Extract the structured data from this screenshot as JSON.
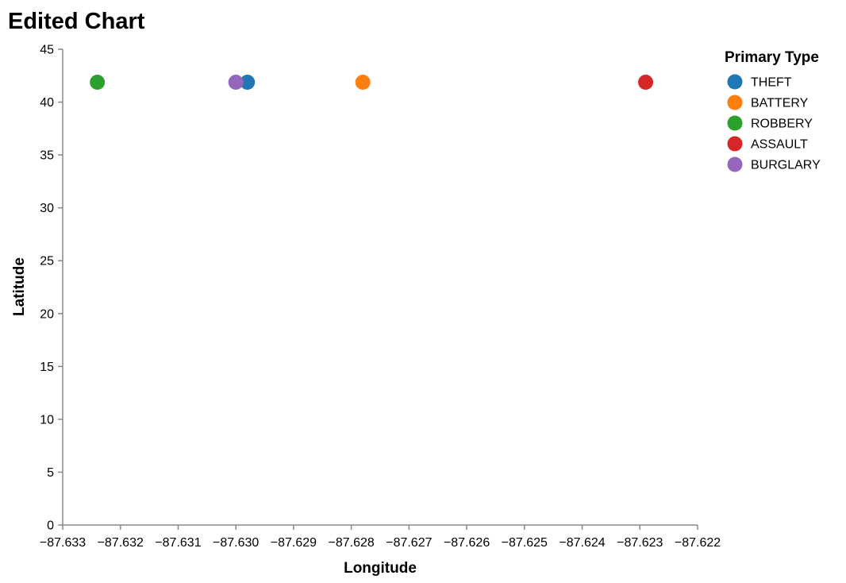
{
  "chart_data": {
    "type": "scatter",
    "title": "Edited Chart",
    "xlabel": "Longitude",
    "ylabel": "Latitude",
    "xlim": [
      -87.633,
      -87.622
    ],
    "ylim": [
      0,
      45
    ],
    "x_ticks": [
      "−87.633",
      "−87.632",
      "−87.631",
      "−87.630",
      "−87.629",
      "−87.628",
      "−87.627",
      "−87.626",
      "−87.625",
      "−87.624",
      "−87.623",
      "−87.622"
    ],
    "x_tick_values": [
      -87.633,
      -87.632,
      -87.631,
      -87.63,
      -87.629,
      -87.628,
      -87.627,
      -87.626,
      -87.625,
      -87.624,
      -87.623,
      -87.622
    ],
    "y_ticks": [
      "0",
      "5",
      "10",
      "15",
      "20",
      "25",
      "30",
      "35",
      "40",
      "45"
    ],
    "y_tick_values": [
      0,
      5,
      10,
      15,
      20,
      25,
      30,
      35,
      40,
      45
    ],
    "grid": false,
    "legend": {
      "title": "Primary Type",
      "position": "right",
      "entries": [
        {
          "label": "THEFT",
          "color": "#1f77b4"
        },
        {
          "label": "BATTERY",
          "color": "#ff7f0e"
        },
        {
          "label": "ROBBERY",
          "color": "#2ca02c"
        },
        {
          "label": "ASSAULT",
          "color": "#d62728"
        },
        {
          "label": "BURGLARY",
          "color": "#9467bd"
        }
      ]
    },
    "series": [
      {
        "name": "THEFT",
        "color": "#1f77b4",
        "points": [
          {
            "x": -87.6298,
            "y": 41.88
          }
        ]
      },
      {
        "name": "BATTERY",
        "color": "#ff7f0e",
        "points": [
          {
            "x": -87.6278,
            "y": 41.88
          }
        ]
      },
      {
        "name": "ROBBERY",
        "color": "#2ca02c",
        "points": [
          {
            "x": -87.6324,
            "y": 41.88
          }
        ]
      },
      {
        "name": "ASSAULT",
        "color": "#d62728",
        "points": [
          {
            "x": -87.6229,
            "y": 41.88
          }
        ]
      },
      {
        "name": "BURGLARY",
        "color": "#9467bd",
        "points": [
          {
            "x": -87.63,
            "y": 41.88
          }
        ]
      }
    ]
  }
}
